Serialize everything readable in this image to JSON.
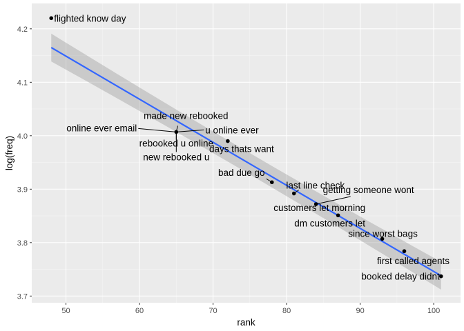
{
  "chart_data": {
    "type": "scatter",
    "xlabel": "rank",
    "ylabel": "log(freq)",
    "xlim": [
      45.35,
      103.65
    ],
    "ylim": [
      3.6875,
      4.2475
    ],
    "x_ticks": [
      50,
      60,
      70,
      80,
      90,
      100
    ],
    "y_ticks": [
      3.7,
      3.8,
      3.9,
      4.0,
      4.1,
      4.2
    ],
    "grid": true,
    "colors": {
      "points": "#000000",
      "fit_line": "#3366ff",
      "band": "#999999"
    },
    "points": [
      {
        "x": 48,
        "y": 4.22,
        "label": "flighted know day"
      },
      {
        "x": 65,
        "y": 4.007,
        "label": "made new rebooked"
      },
      {
        "x": 65,
        "y": 4.007,
        "label": "online ever email"
      },
      {
        "x": 65,
        "y": 4.007,
        "label": "u online ever"
      },
      {
        "x": 65,
        "y": 4.007,
        "label": "rebooked u online"
      },
      {
        "x": 65,
        "y": 4.007,
        "label": "new rebooked u"
      },
      {
        "x": 72,
        "y": 3.99,
        "label": "days thats want"
      },
      {
        "x": 78,
        "y": 3.913,
        "label": "bad due go"
      },
      {
        "x": 81,
        "y": 3.892,
        "label": "last line check"
      },
      {
        "x": 84,
        "y": 3.872,
        "label": "getting someone wont"
      },
      {
        "x": 84,
        "y": 3.872,
        "label": "customers let morning"
      },
      {
        "x": 87,
        "y": 3.851,
        "label": "dm customers let"
      },
      {
        "x": 93,
        "y": 3.807,
        "label": "since worst bags"
      },
      {
        "x": 96,
        "y": 3.784,
        "label": "first called agents"
      },
      {
        "x": 101,
        "y": 3.737,
        "label": "booked delay didnt"
      }
    ],
    "fit": {
      "method": "lm",
      "x": [
        48,
        101
      ],
      "y": [
        4.165,
        3.738
      ],
      "band_halfwidth": [
        0.026,
        0.02
      ]
    }
  }
}
